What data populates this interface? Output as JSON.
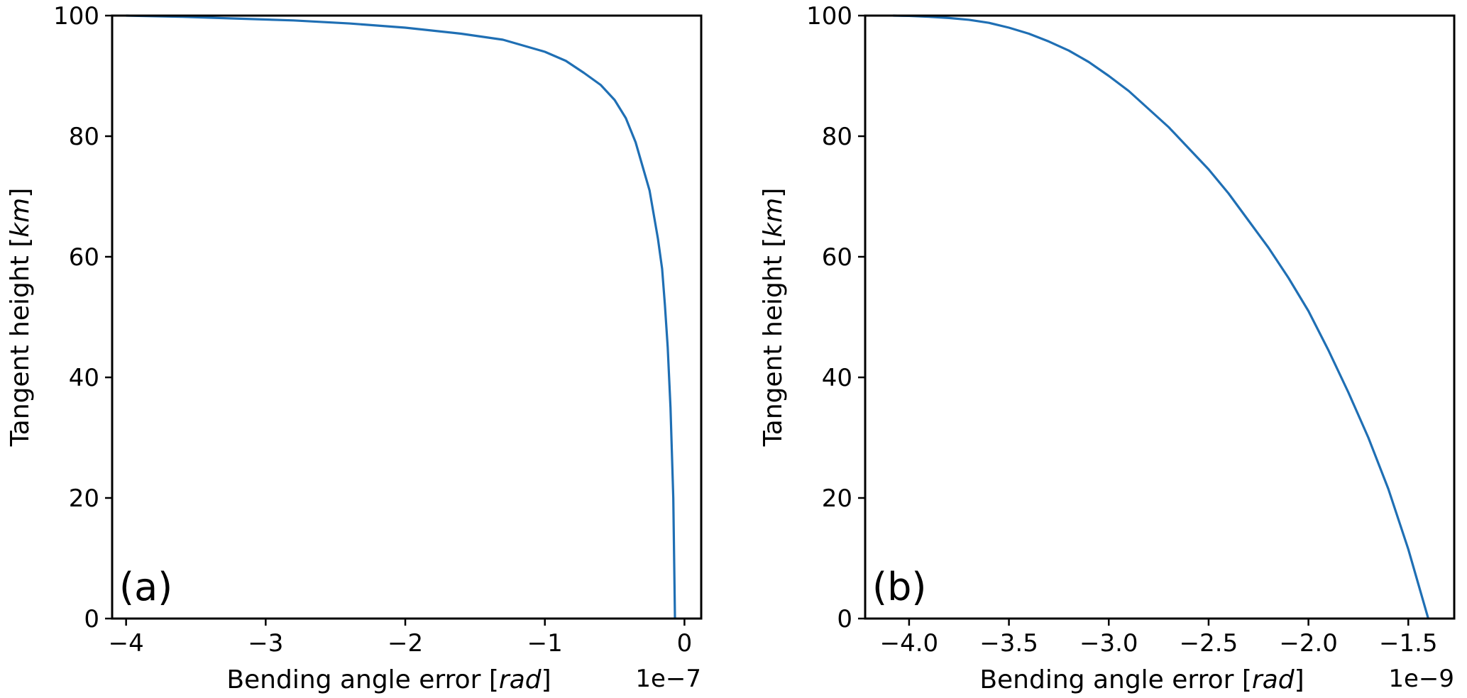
{
  "chart_data": [
    {
      "type": "line",
      "panel_label": "(a)",
      "xlabel_prefix": "Bending angle error [",
      "xlabel_unit": "rad",
      "xlabel_suffix": "]",
      "ylabel_prefix": "Tangent height [",
      "ylabel_unit": "km",
      "ylabel_suffix": "]",
      "x_offset_label": "1e−7",
      "xlim": [
        -4.1,
        0.12
      ],
      "ylim": [
        0,
        100
      ],
      "xticks": [
        -4,
        -3,
        -2,
        -1,
        0
      ],
      "xtick_labels": [
        "−4",
        "−3",
        "−2",
        "−1",
        "0"
      ],
      "yticks": [
        0,
        20,
        40,
        60,
        80,
        100
      ],
      "ytick_labels": [
        "0",
        "20",
        "40",
        "60",
        "80",
        "100"
      ],
      "grid": false,
      "series": [
        {
          "color": "#1f6fb4",
          "x": [
            -0.068,
            -0.08,
            -0.1,
            -0.12,
            -0.14,
            -0.16,
            -0.19,
            -0.22,
            -0.25,
            -0.3,
            -0.35,
            -0.42,
            -0.5,
            -0.6,
            -0.72,
            -0.85,
            -1.0,
            -1.3,
            -1.6,
            -2.0,
            -2.4,
            -2.8,
            -3.2,
            -3.6,
            -4.0
          ],
          "y": [
            0,
            20,
            35,
            45,
            52,
            58,
            63,
            67,
            71,
            75,
            79,
            83,
            86,
            88.5,
            90.5,
            92.5,
            94,
            96,
            97,
            98,
            98.7,
            99.2,
            99.5,
            99.8,
            100
          ]
        }
      ]
    },
    {
      "type": "line",
      "panel_label": "(b)",
      "xlabel_prefix": "Bending angle error [",
      "xlabel_unit": "rad",
      "xlabel_suffix": "]",
      "ylabel_prefix": "Tangent height [",
      "ylabel_unit": "km",
      "ylabel_suffix": "]",
      "x_offset_label": "1e−9",
      "xlim": [
        -4.22,
        -1.27
      ],
      "ylim": [
        0,
        100
      ],
      "xticks": [
        -4.0,
        -3.5,
        -3.0,
        -2.5,
        -2.0,
        -1.5
      ],
      "xtick_labels": [
        "−4.0",
        "−3.5",
        "−3.0",
        "−2.5",
        "−2.0",
        "−1.5"
      ],
      "yticks": [
        0,
        20,
        40,
        60,
        80,
        100
      ],
      "ytick_labels": [
        "0",
        "20",
        "40",
        "60",
        "80",
        "100"
      ],
      "grid": false,
      "series": [
        {
          "color": "#1f6fb4",
          "x": [
            -1.4,
            -1.5,
            -1.6,
            -1.7,
            -1.8,
            -1.9,
            -2.0,
            -2.1,
            -2.2,
            -2.3,
            -2.4,
            -2.5,
            -2.6,
            -2.7,
            -2.8,
            -2.9,
            -3.0,
            -3.1,
            -3.2,
            -3.3,
            -3.4,
            -3.5,
            -3.6,
            -3.7,
            -3.8,
            -3.9,
            -4.0,
            -4.08
          ],
          "y": [
            0,
            11.5,
            21.5,
            30,
            37.5,
            44.5,
            51,
            56.5,
            61.5,
            66,
            70.5,
            74.5,
            78,
            81.5,
            84.5,
            87.5,
            90,
            92.3,
            94.2,
            95.7,
            97,
            98,
            98.8,
            99.3,
            99.6,
            99.8,
            99.95,
            100
          ]
        }
      ]
    }
  ]
}
